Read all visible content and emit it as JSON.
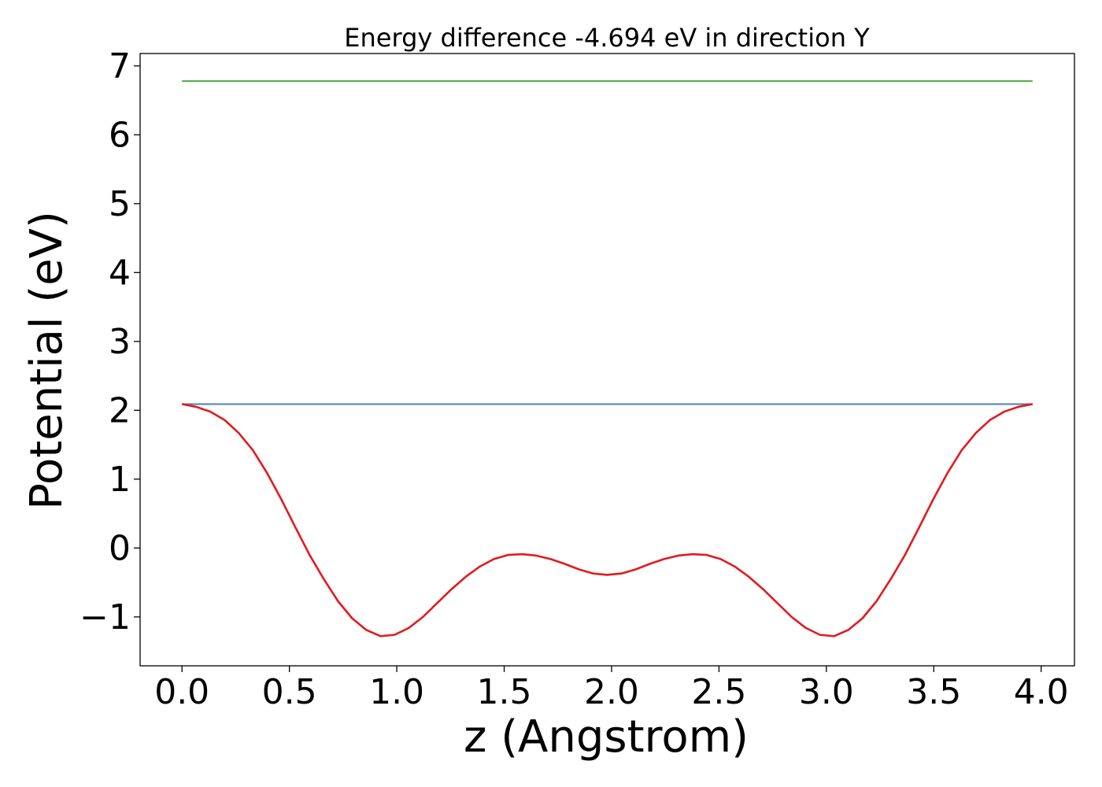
{
  "chart_data": {
    "type": "line",
    "title": "Energy difference -4.694 eV in direction Y",
    "xlabel": "z (Angstrom)",
    "ylabel": "Potential (eV)",
    "xlim": [
      -0.195,
      4.155
    ],
    "ylim": [
      -1.71,
      7.18
    ],
    "x_ticks": [
      0.0,
      0.5,
      1.0,
      1.5,
      2.0,
      2.5,
      3.0,
      3.5,
      4.0
    ],
    "x_tick_labels": [
      "0.0",
      "0.5",
      "1.0",
      "1.5",
      "2.0",
      "2.5",
      "3.0",
      "3.5",
      "4.0"
    ],
    "y_ticks": [
      -1,
      0,
      1,
      2,
      3,
      4,
      5,
      6,
      7
    ],
    "y_tick_labels": [
      "−1",
      "0",
      "1",
      "2",
      "3",
      "4",
      "5",
      "6",
      "7"
    ],
    "grid": false,
    "series": [
      {
        "name": "planar-average-potential",
        "color": "#e31a1c",
        "x": [
          0.0,
          0.066,
          0.132,
          0.198,
          0.264,
          0.33,
          0.396,
          0.462,
          0.528,
          0.594,
          0.66,
          0.726,
          0.792,
          0.858,
          0.924,
          0.99,
          1.056,
          1.122,
          1.188,
          1.254,
          1.32,
          1.386,
          1.452,
          1.518,
          1.584,
          1.65,
          1.716,
          1.782,
          1.848,
          1.914,
          1.98,
          2.046,
          2.112,
          2.178,
          2.244,
          2.31,
          2.376,
          2.442,
          2.508,
          2.574,
          2.64,
          2.706,
          2.772,
          2.838,
          2.904,
          2.97,
          3.036,
          3.102,
          3.168,
          3.234,
          3.3,
          3.366,
          3.432,
          3.498,
          3.564,
          3.63,
          3.696,
          3.762,
          3.828,
          3.894,
          3.96
        ],
        "y": [
          2.09,
          2.05,
          1.98,
          1.86,
          1.67,
          1.42,
          1.09,
          0.71,
          0.3,
          -0.1,
          -0.45,
          -0.77,
          -1.02,
          -1.19,
          -1.28,
          -1.26,
          -1.16,
          -1.0,
          -0.8,
          -0.6,
          -0.42,
          -0.27,
          -0.16,
          -0.1,
          -0.09,
          -0.11,
          -0.16,
          -0.23,
          -0.31,
          -0.37,
          -0.39,
          -0.37,
          -0.31,
          -0.23,
          -0.16,
          -0.11,
          -0.09,
          -0.1,
          -0.16,
          -0.27,
          -0.42,
          -0.6,
          -0.8,
          -1.0,
          -1.16,
          -1.26,
          -1.28,
          -1.19,
          -1.02,
          -0.77,
          -0.45,
          -0.1,
          0.3,
          0.71,
          1.09,
          1.42,
          1.67,
          1.86,
          1.98,
          2.05,
          2.09
        ]
      },
      {
        "name": "vacuum-level-line",
        "color": "#4a7fb0",
        "x": [
          0.0,
          3.96
        ],
        "y": [
          2.09,
          2.09
        ]
      },
      {
        "name": "upper-level-line",
        "color": "#4daf4a",
        "x": [
          0.0,
          3.96
        ],
        "y": [
          6.78,
          6.78
        ]
      }
    ]
  }
}
